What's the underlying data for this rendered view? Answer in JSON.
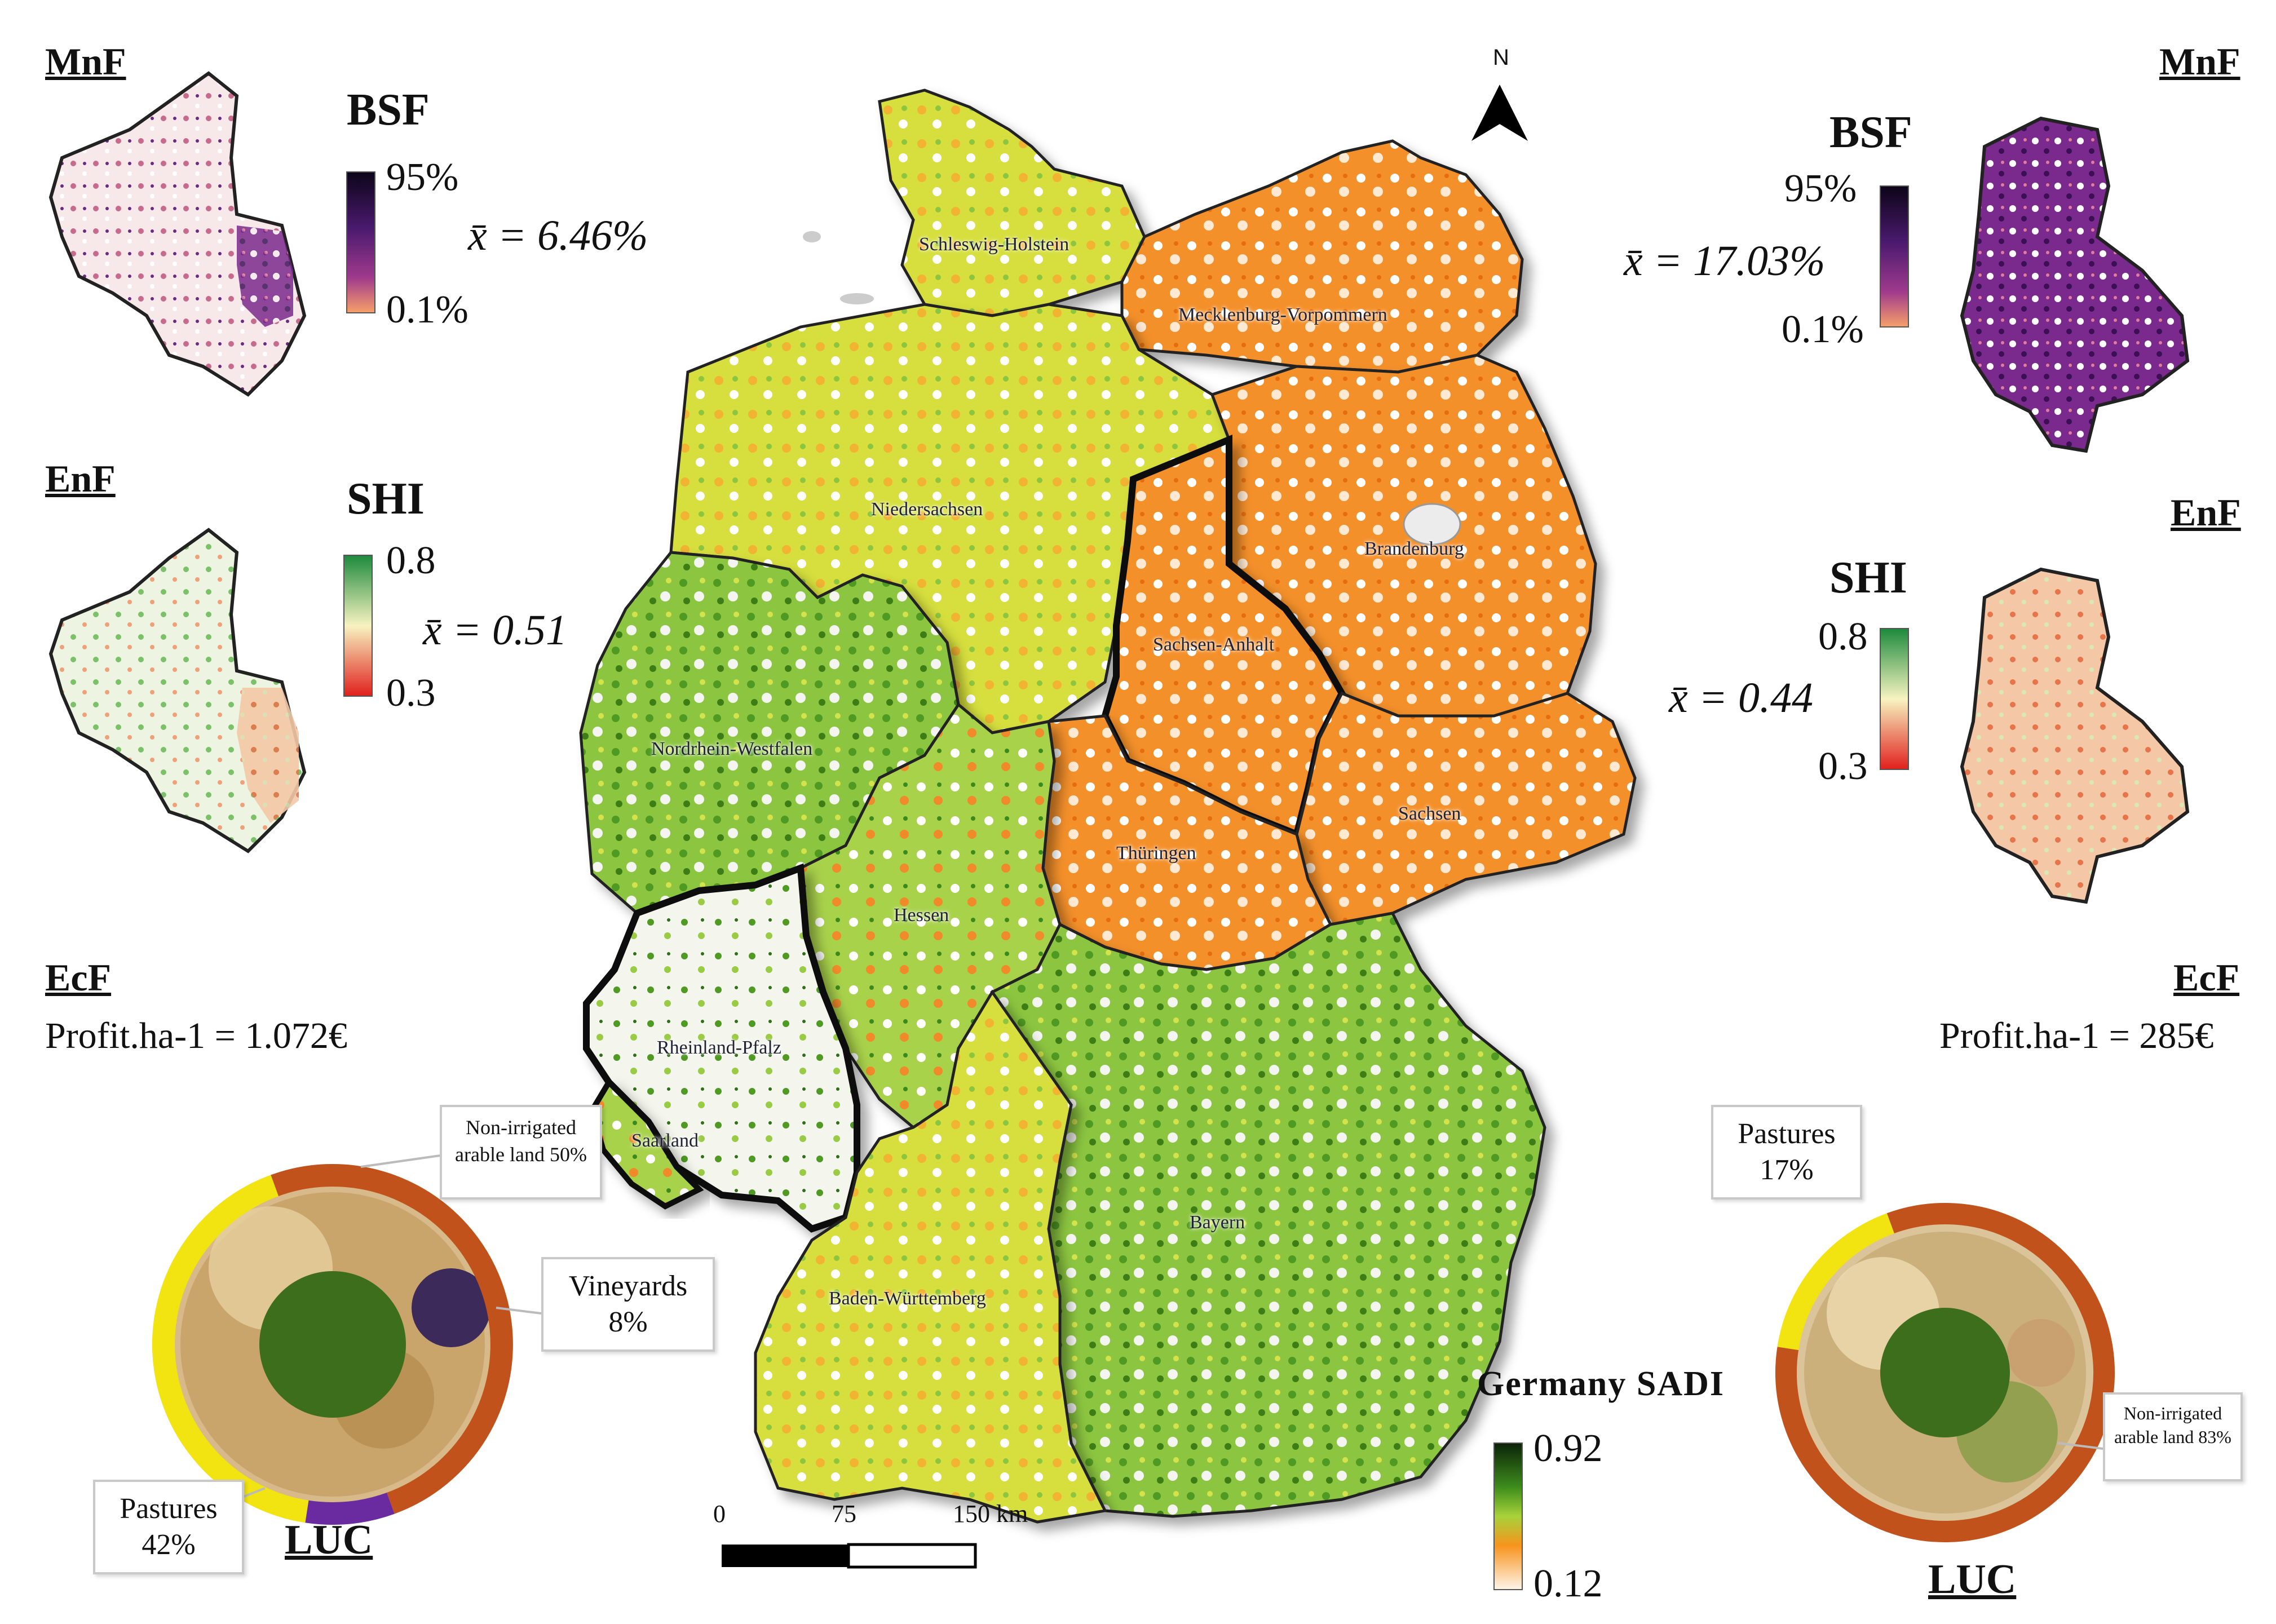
{
  "left": {
    "mnf": {
      "heading": "MnF",
      "legend_title": "BSF",
      "legend_max": "95%",
      "legend_min": "0.1%",
      "mean": "x̄ = 6.46%"
    },
    "enf": {
      "heading": "EnF",
      "legend_title": "SHI",
      "legend_max": "0.8",
      "legend_min": "0.3",
      "mean": "x̄ = 0.51"
    },
    "ecf": {
      "heading": "EcF",
      "profit": "Profit.ha-1 = 1.072€"
    },
    "luc": {
      "heading": "LUC",
      "callouts": [
        {
          "text": "Non-irrigated arable land 50%"
        },
        {
          "text": "Vineyards 8%"
        },
        {
          "text": "Pastures 42%"
        }
      ],
      "shares": {
        "arable": 50,
        "vineyards": 8,
        "pastures": 42
      }
    }
  },
  "right": {
    "mnf": {
      "heading": "MnF",
      "legend_title": "BSF",
      "legend_max": "95%",
      "legend_min": "0.1%",
      "mean": "x̄ = 17.03%"
    },
    "enf": {
      "heading": "EnF",
      "legend_title": "SHI",
      "legend_max": "0.8",
      "legend_min": "0.3",
      "mean": "x̄ = 0.44"
    },
    "ecf": {
      "heading": "EcF",
      "profit": "Profit.ha-1 = 285€"
    },
    "luc": {
      "heading": "LUC",
      "callouts": [
        {
          "text": "Pastures 17%"
        },
        {
          "text": "Non-irrigated arable land 83%"
        }
      ],
      "shares": {
        "arable": 83,
        "pastures": 17
      }
    }
  },
  "map": {
    "north": "N",
    "legend_title": "Germany SADI",
    "legend_max": "0.92",
    "legend_min": "0.12",
    "scale": [
      "0",
      "75",
      "150 km"
    ],
    "regions": [
      "Schleswig-Holstein",
      "Mecklenburg-Vorpommern",
      "Niedersachsen",
      "Brandenburg",
      "Sachsen-Anhalt",
      "Nordrhein-Westfalen",
      "Sachsen",
      "Thüringen",
      "Hessen",
      "Rheinland-Pfalz",
      "Saarland",
      "Bayern",
      "Baden-Württemberg"
    ]
  },
  "colors": {
    "sadi_high": "#0f2a0a",
    "sadi_mid": "#6fbf2a",
    "sadi_low": "#f7941d",
    "bsf_high": "#1a0a2e",
    "bsf_low": "#f08a6a",
    "shi_high": "#1f8a3a",
    "shi_low": "#e02020",
    "luc_arable": "#c2521c",
    "luc_pastures": "#f2e411",
    "luc_vineyards": "#6a2aa0"
  }
}
